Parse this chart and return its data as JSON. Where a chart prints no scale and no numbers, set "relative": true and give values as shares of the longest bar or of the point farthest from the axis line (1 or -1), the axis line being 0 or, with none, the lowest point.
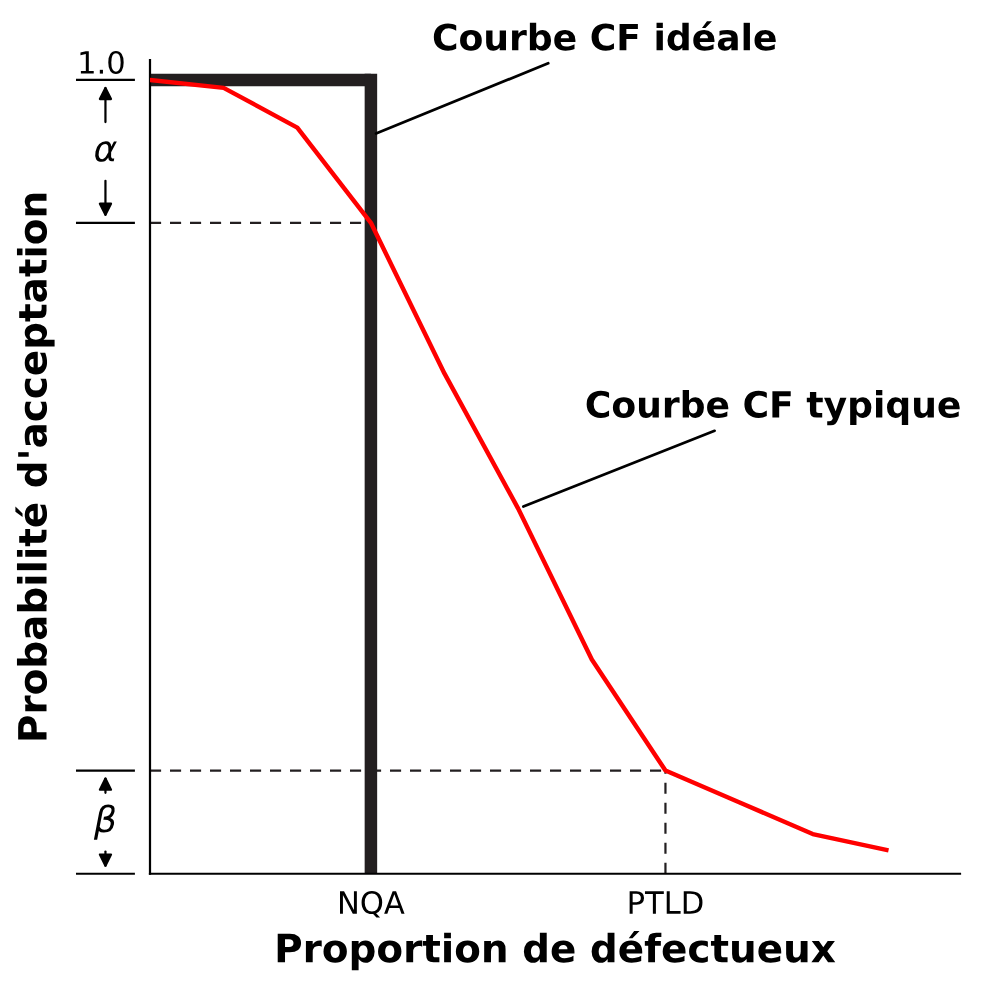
{
  "chart_data": {
    "type": "line",
    "relative": true,
    "xlabel": "Proportion de défectueux",
    "ylabel": "Probabilité d'acceptation",
    "categories": [
      null,
      null,
      null,
      "NQA",
      null,
      null,
      null,
      "PTLD",
      null,
      null,
      null,
      null
    ],
    "series": [
      {
        "color": "#ff0000",
        "values": [
          1.0,
          0.99,
          0.94,
          0.82,
          0.63,
          0.46,
          0.27,
          0.13,
          0.09,
          0.05,
          0.03,
          null
        ]
      },
      {
        "type": "step",
        "color": "#231f20",
        "values": [
          1.0,
          1.0,
          1.0,
          1.0,
          null,
          null,
          null,
          null,
          null,
          null,
          null,
          null
        ]
      }
    ],
    "ref_lines": [
      {
        "axis": "y",
        "value": 0.82,
        "line_style": "dashed",
        "color": "#231f20"
      },
      {
        "axis": "y",
        "value": 0.13,
        "line_style": "dashed",
        "color": "#231f20"
      },
      {
        "axis": "x",
        "value": "PTLD",
        "line_style": "dashed",
        "color": "#231f20"
      },
      {
        "axis": "x",
        "value": "NQA",
        "line_style": "solid",
        "color": "#231f20"
      }
    ],
    "annotations": [
      "1.0",
      "α",
      "β",
      {
        "text": "Courbe CF idéale",
        "x": "NQA",
        "y": 0.93
      },
      "Courbe CF typique"
    ]
  }
}
